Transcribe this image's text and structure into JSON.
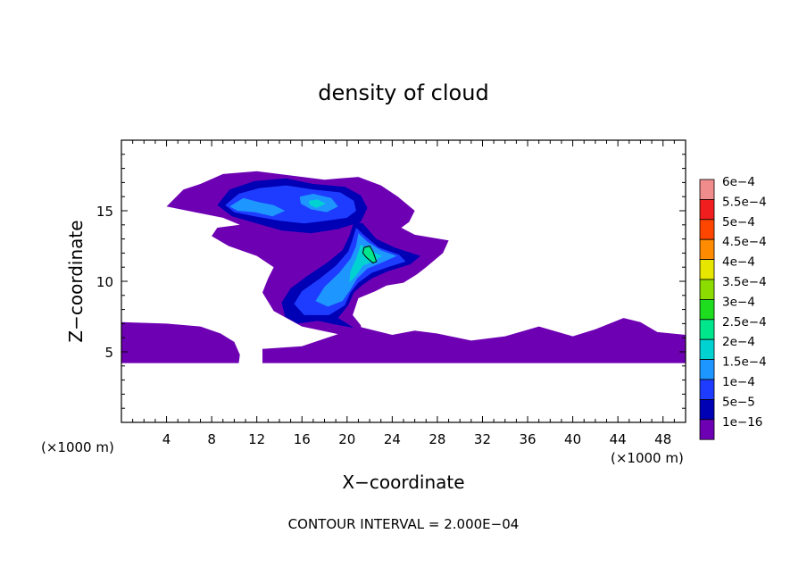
{
  "chart_data": {
    "type": "heatmap",
    "title": "density of cloud",
    "xlabel": "X−coordinate",
    "ylabel": "Z−coordinate",
    "x_unit": "(×1000 m)",
    "y_unit": "(×1000 m)",
    "xlim": [
      0,
      50
    ],
    "ylim": [
      0,
      20
    ],
    "x_ticks": [
      "4",
      "8",
      "12",
      "16",
      "20",
      "24",
      "28",
      "32",
      "36",
      "40",
      "44",
      "48"
    ],
    "x_tick_values": [
      4,
      8,
      12,
      16,
      20,
      24,
      28,
      32,
      36,
      40,
      44,
      48
    ],
    "y_ticks": [
      "5",
      "10",
      "15"
    ],
    "y_tick_values": [
      5,
      10,
      15
    ],
    "footer": "CONTOUR INTERVAL = 2.000E−04",
    "legend_position": "right",
    "colorbar": [
      {
        "label": "6e−4",
        "color": "#f08c8c"
      },
      {
        "label": "5.5e−4",
        "color": "#f01e1e"
      },
      {
        "label": "5e−4",
        "color": "#ff4600"
      },
      {
        "label": "4.5e−4",
        "color": "#ff8c00"
      },
      {
        "label": "4e−4",
        "color": "#e6e600"
      },
      {
        "label": "3.5e−4",
        "color": "#8cdc00"
      },
      {
        "label": "3e−4",
        "color": "#1edc1e"
      },
      {
        "label": "2.5e−4",
        "color": "#00e68c"
      },
      {
        "label": "2e−4",
        "color": "#00d2d2"
      },
      {
        "label": "1.5e−4",
        "color": "#1e96ff"
      },
      {
        "label": "1e−4",
        "color": "#1e3cff"
      },
      {
        "label": "5e−5",
        "color": "#0000b4"
      },
      {
        "label": "1e−16",
        "color": "#6e00b4"
      }
    ],
    "regions": [
      {
        "level": "1e-16",
        "color": "#6e00b4",
        "points": [
          [
            0,
            7.1
          ],
          [
            4,
            7.0
          ],
          [
            7,
            6.8
          ],
          [
            8.8,
            6.3
          ],
          [
            10,
            5.7
          ],
          [
            10.5,
            4.8
          ],
          [
            10.4,
            4.2
          ],
          [
            0,
            4.2
          ]
        ]
      },
      {
        "level": "1e-16",
        "color": "#6e00b4",
        "points": [
          [
            12.5,
            5.2
          ],
          [
            16,
            5.4
          ],
          [
            19,
            6.2
          ],
          [
            21,
            6.8
          ],
          [
            24,
            6.2
          ],
          [
            26,
            6.5
          ],
          [
            28,
            6.3
          ],
          [
            31,
            5.8
          ],
          [
            34,
            6.1
          ],
          [
            37,
            6.8
          ],
          [
            40,
            6.1
          ],
          [
            42,
            6.6
          ],
          [
            44.5,
            7.4
          ],
          [
            46,
            7.1
          ],
          [
            47.5,
            6.4
          ],
          [
            50,
            6.2
          ],
          [
            50,
            4.2
          ],
          [
            12.5,
            4.2
          ]
        ]
      },
      {
        "level": "1e-16",
        "color": "#6e00b4",
        "points": [
          [
            4,
            15.3
          ],
          [
            5.5,
            16.5
          ],
          [
            7,
            16.9
          ],
          [
            9,
            17.6
          ],
          [
            12,
            17.8
          ],
          [
            15,
            17.5
          ],
          [
            18,
            17.2
          ],
          [
            21,
            17.4
          ],
          [
            23,
            16.8
          ],
          [
            24.5,
            16.0
          ],
          [
            26,
            15.0
          ],
          [
            25.5,
            14.2
          ],
          [
            24.8,
            13.8
          ],
          [
            26,
            13.3
          ],
          [
            29,
            12.9
          ],
          [
            28.5,
            12.0
          ],
          [
            27,
            11.0
          ],
          [
            26.2,
            10.5
          ],
          [
            25,
            9.9
          ],
          [
            23.5,
            9.7
          ],
          [
            22.5,
            9.3
          ],
          [
            21,
            8.8
          ],
          [
            20.5,
            7.6
          ],
          [
            21.2,
            6.9
          ],
          [
            21.5,
            6.0
          ],
          [
            19.5,
            6.2
          ],
          [
            16,
            6.8
          ],
          [
            13.5,
            7.9
          ],
          [
            12.5,
            9.2
          ],
          [
            13,
            10.2
          ],
          [
            13.5,
            11.0
          ],
          [
            12,
            11.8
          ],
          [
            9.5,
            12.5
          ],
          [
            8,
            13.2
          ],
          [
            8.5,
            13.8
          ],
          [
            10.5,
            14.0
          ],
          [
            9,
            14.5
          ],
          [
            6.5,
            14.9
          ]
        ]
      },
      {
        "level": "5e-5",
        "color": "#0000b4",
        "points": [
          [
            8.5,
            15.4
          ],
          [
            9.6,
            16.5
          ],
          [
            11.8,
            17.1
          ],
          [
            14.6,
            17.3
          ],
          [
            17,
            16.9
          ],
          [
            19.8,
            16.7
          ],
          [
            21.2,
            16.1
          ],
          [
            21.8,
            15.2
          ],
          [
            21.2,
            14.2
          ],
          [
            19.2,
            13.7
          ],
          [
            16.8,
            13.4
          ],
          [
            14.2,
            13.6
          ],
          [
            12,
            14.1
          ],
          [
            9.8,
            14.6
          ]
        ]
      },
      {
        "level": "5e-5",
        "color": "#0000b4",
        "points": [
          [
            20.6,
            14.2
          ],
          [
            21.4,
            14.1
          ],
          [
            22.6,
            13.0
          ],
          [
            24.2,
            12.4
          ],
          [
            26.5,
            11.8
          ],
          [
            25.6,
            11.2
          ],
          [
            23.6,
            10.7
          ],
          [
            22.2,
            10.2
          ],
          [
            21.3,
            9.7
          ],
          [
            20.6,
            9.2
          ],
          [
            20.1,
            8.3
          ],
          [
            19.2,
            7.4
          ],
          [
            20.6,
            6.7
          ],
          [
            19.2,
            6.9
          ],
          [
            17.4,
            7.2
          ],
          [
            15.6,
            7.0
          ],
          [
            14.5,
            7.5
          ],
          [
            14.2,
            8.5
          ],
          [
            15.0,
            9.5
          ],
          [
            16.5,
            10.4
          ],
          [
            18.2,
            11.3
          ],
          [
            19.6,
            12.2
          ],
          [
            20.2,
            13.2
          ]
        ]
      },
      {
        "level": "1e-4",
        "color": "#1e3cff",
        "points": [
          [
            9.2,
            15.4
          ],
          [
            10.4,
            16.2
          ],
          [
            12.2,
            16.6
          ],
          [
            14.6,
            16.8
          ],
          [
            17,
            16.5
          ],
          [
            19.4,
            16.3
          ],
          [
            20.6,
            15.7
          ],
          [
            20.8,
            15.0
          ],
          [
            20,
            14.5
          ],
          [
            18.2,
            14.3
          ],
          [
            16.2,
            14.1
          ],
          [
            14,
            14.3
          ],
          [
            11.8,
            14.6
          ],
          [
            10,
            14.9
          ]
        ]
      },
      {
        "level": "1e-4",
        "color": "#1e3cff",
        "points": [
          [
            20.8,
            13.8
          ],
          [
            21.6,
            13.2
          ],
          [
            22.8,
            12.4
          ],
          [
            24.6,
            11.9
          ],
          [
            25.2,
            11.4
          ],
          [
            23.6,
            11.0
          ],
          [
            22.2,
            10.6
          ],
          [
            21,
            9.9
          ],
          [
            20.3,
            9.2
          ],
          [
            19.8,
            8.3
          ],
          [
            18.4,
            7.6
          ],
          [
            16.2,
            7.6
          ],
          [
            15.3,
            8.4
          ],
          [
            16,
            9.3
          ],
          [
            17.6,
            10.2
          ],
          [
            19,
            11.1
          ],
          [
            20.1,
            12.1
          ],
          [
            20.5,
            13.0
          ]
        ]
      },
      {
        "level": "1.5e-4",
        "color": "#1e96ff",
        "points": [
          [
            9.6,
            15.3
          ],
          [
            10.8,
            15.9
          ],
          [
            12.2,
            15.6
          ],
          [
            13.5,
            15.4
          ],
          [
            14.5,
            15.0
          ],
          [
            13.4,
            14.6
          ],
          [
            11.8,
            14.9
          ],
          [
            10.3,
            15.0
          ]
        ]
      },
      {
        "level": "1.5e-4",
        "color": "#1e96ff",
        "points": [
          [
            15.8,
            16.0
          ],
          [
            17,
            16.2
          ],
          [
            18.6,
            15.9
          ],
          [
            19.2,
            15.3
          ],
          [
            18.2,
            14.9
          ],
          [
            16.8,
            15.1
          ],
          [
            15.9,
            15.5
          ]
        ]
      },
      {
        "level": "1.5e-4",
        "color": "#1e96ff",
        "points": [
          [
            21.0,
            13.4
          ],
          [
            21.8,
            12.8
          ],
          [
            23,
            12.2
          ],
          [
            24.4,
            11.8
          ],
          [
            23,
            11.3
          ],
          [
            21.8,
            10.9
          ],
          [
            20.9,
            10.2
          ],
          [
            20.3,
            9.4
          ],
          [
            19.6,
            8.6
          ],
          [
            18.3,
            8.2
          ],
          [
            17.2,
            8.6
          ],
          [
            18,
            9.6
          ],
          [
            19.3,
            10.6
          ],
          [
            20.3,
            11.6
          ],
          [
            20.8,
            12.5
          ]
        ]
      },
      {
        "level": "2e-4",
        "color": "#00d2d2",
        "points": [
          [
            21.2,
            12.6
          ],
          [
            22.2,
            12.1
          ],
          [
            23.1,
            11.8
          ],
          [
            22.3,
            11.4
          ],
          [
            21.4,
            11.1
          ],
          [
            20.8,
            10.4
          ],
          [
            20.2,
            9.9
          ],
          [
            20.3,
            10.7
          ],
          [
            20.8,
            11.6
          ]
        ]
      },
      {
        "level": "2e-4",
        "color": "#00d2d2",
        "points": [
          [
            16.6,
            15.7
          ],
          [
            17.4,
            15.8
          ],
          [
            18.1,
            15.5
          ],
          [
            17.3,
            15.2
          ],
          [
            16.7,
            15.4
          ]
        ]
      },
      {
        "level": "2.5e-4",
        "color": "#00e68c",
        "points": [
          [
            21.5,
            12.4
          ],
          [
            22.0,
            12.5
          ],
          [
            22.3,
            12.1
          ],
          [
            22.6,
            11.4
          ],
          [
            22.3,
            11.3
          ],
          [
            21.7,
            11.7
          ],
          [
            21.4,
            12.0
          ]
        ]
      }
    ]
  }
}
